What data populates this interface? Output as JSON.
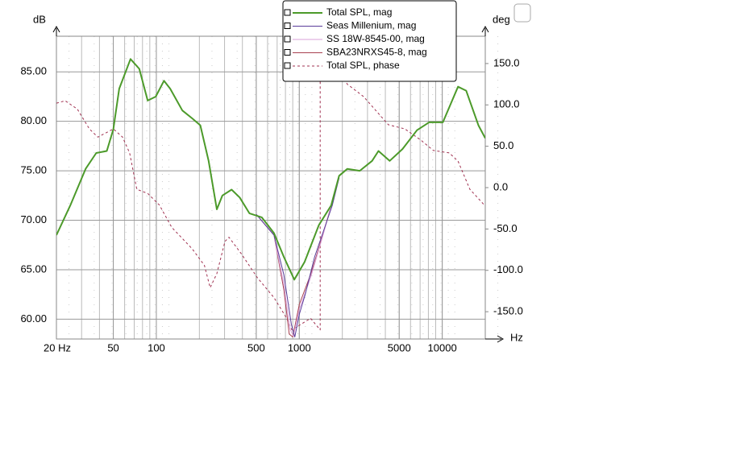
{
  "chart_data": {
    "type": "line",
    "y_label": "dB",
    "y2_label": "deg",
    "x_label": "Hz",
    "log_x": true,
    "grid": true,
    "minor_grid": true,
    "legend": "top",
    "xlim": [
      20,
      20000
    ],
    "xticks": [
      {
        "value": 20,
        "label": "20 Hz"
      },
      50,
      100,
      500,
      1000,
      5000,
      10000
    ],
    "ylim": [
      58,
      88.6
    ],
    "yticks": [
      {
        "value": 60,
        "label": "60.00"
      },
      {
        "value": 65,
        "label": "65.00"
      },
      {
        "value": 70,
        "label": "70.00"
      },
      {
        "value": 75,
        "label": "75.00"
      },
      {
        "value": 80,
        "label": "80.00"
      },
      {
        "value": 85,
        "label": "85.00"
      }
    ],
    "y2lim": [
      -183,
      183
    ],
    "y2ticks": [
      {
        "value": -150,
        "label": "-150.0"
      },
      {
        "value": -100,
        "label": "-100.0"
      },
      {
        "value": -50,
        "label": "-50.0"
      },
      {
        "value": 0,
        "label": "0.0"
      },
      {
        "value": 50,
        "label": "50.0"
      },
      {
        "value": 100,
        "label": "100.0"
      },
      {
        "value": 150,
        "label": "150.0"
      }
    ],
    "series": [
      {
        "name": "Total SPL, mag",
        "color": "#4c9a2a",
        "width": 2,
        "x": [
          20,
          25,
          32,
          38,
          45,
          50,
          55,
          66,
          76,
          87,
          99,
          113,
          125,
          152,
          178,
          203,
          232,
          265,
          290,
          336,
          383,
          448,
          546,
          665,
          780,
          923,
          1090,
          1370,
          1670,
          1900,
          2170,
          2650,
          3230,
          3580,
          4290,
          5270,
          6660,
          8090,
          10100,
          12900,
          14700,
          17900,
          20000
        ],
        "values": [
          68.5,
          71.5,
          75.2,
          76.8,
          77.0,
          79.2,
          83.3,
          86.3,
          85.3,
          82.1,
          82.5,
          84.1,
          83.3,
          81.1,
          80.3,
          79.6,
          76.0,
          71.1,
          72.5,
          73.1,
          72.3,
          70.7,
          70.3,
          68.7,
          66.3,
          64.0,
          65.8,
          69.5,
          71.5,
          74.5,
          75.2,
          75.0,
          76.0,
          77.0,
          76.0,
          77.2,
          79.1,
          79.9,
          79.9,
          83.5,
          83.1,
          79.6,
          78.3
        ]
      },
      {
        "name": "Seas Millenium, mag",
        "color": "#5a3c9a",
        "width": 1,
        "x": [
          500,
          665,
          780,
          880,
          930,
          1000,
          1100,
          1280,
          1460,
          1700,
          1900
        ],
        "values": [
          70.6,
          68.5,
          64.5,
          59.5,
          58.2,
          60.5,
          62.5,
          66.3,
          68.7,
          71.5,
          74.3
        ]
      },
      {
        "name": "SS 18W-8545-00, mag",
        "color": "#d8a0d8",
        "width": 1,
        "x": [
          500,
          665,
          780,
          860,
          910,
          1000,
          1200,
          1460,
          1900
        ],
        "values": [
          70.6,
          68.5,
          63.5,
          59.0,
          58.3,
          61.0,
          64.2,
          68.4,
          74.3
        ]
      },
      {
        "name": "SBA23NRXS45-8, mag",
        "color": "#a84050",
        "width": 1,
        "x": [
          500,
          665,
          780,
          850,
          900,
          1000,
          1200,
          1460,
          1900
        ],
        "values": [
          70.6,
          68.5,
          63.0,
          58.5,
          58.2,
          61.5,
          64.5,
          68.5,
          74.3
        ]
      },
      {
        "name": "Total SPL, phase",
        "color": "#a03050",
        "width": 1,
        "dashed": true,
        "axis": "y2",
        "x": [
          20,
          23,
          28,
          34,
          39,
          50,
          58,
          65,
          73,
          87,
          105,
          128,
          178,
          217,
          238,
          265,
          302,
          322,
          393,
          510,
          665,
          810,
          888,
          1200,
          1400,
          1400,
          1900,
          2170,
          2820,
          4200,
          5480,
          7130,
          8650,
          11200,
          12900,
          15600,
          19700
        ],
        "values": [
          102,
          105,
          95,
          71,
          61,
          71,
          61,
          42,
          -2,
          -7,
          -21,
          -48,
          -74,
          -94,
          -121,
          -104,
          -65,
          -60,
          -80,
          -109,
          -133,
          -157,
          -172,
          -158,
          -172,
          183,
          140,
          125,
          110,
          76,
          71,
          57,
          45,
          42,
          32,
          -2,
          -21
        ]
      }
    ]
  }
}
